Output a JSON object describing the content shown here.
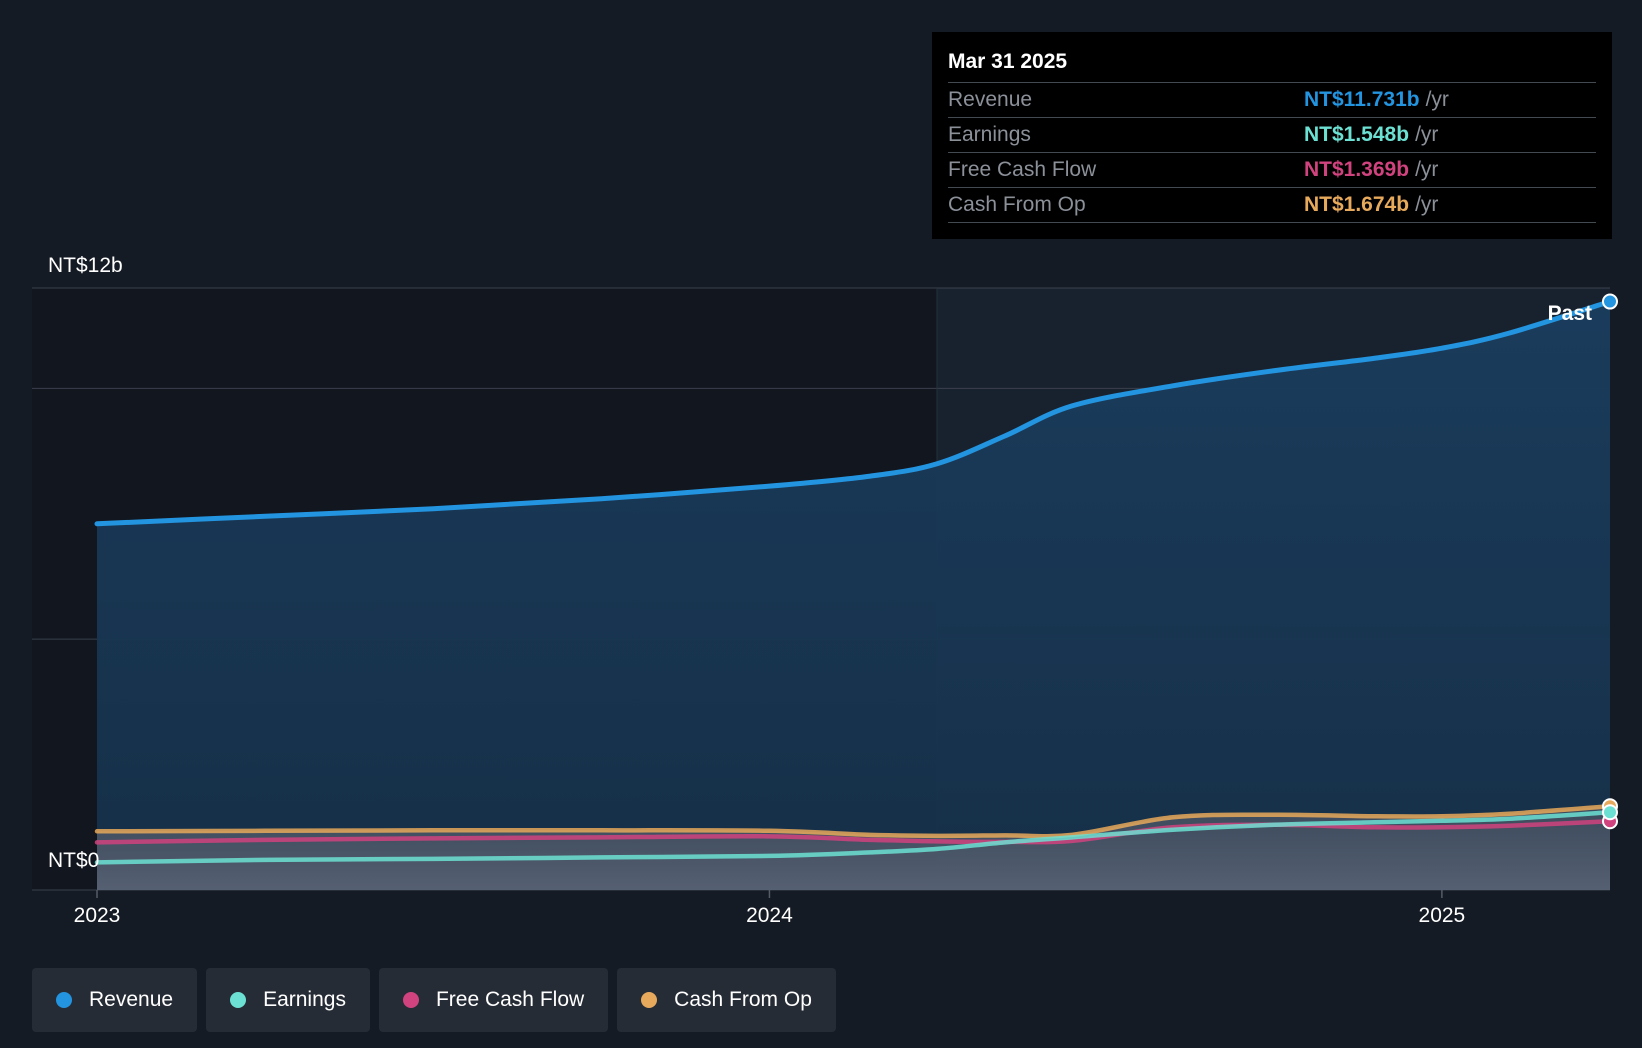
{
  "chart_data": {
    "type": "line",
    "x_labels": [
      "2023",
      "2024",
      "2025"
    ],
    "y_labels": [
      "NT$12b",
      "NT$0"
    ],
    "ylim": [
      0,
      12
    ],
    "y_unit": "NT$ billions",
    "marker_label": "Past",
    "x": [
      2023.0,
      2023.25,
      2023.5,
      2023.75,
      2024.0,
      2024.15,
      2024.25,
      2024.35,
      2024.45,
      2024.6,
      2024.75,
      2024.9,
      2025.0,
      2025.1,
      2025.25
    ],
    "series": [
      {
        "name": "Revenue",
        "color": "#2394df",
        "values": [
          7.3,
          7.45,
          7.6,
          7.8,
          8.05,
          8.25,
          8.5,
          9.05,
          9.65,
          10.05,
          10.35,
          10.6,
          10.8,
          11.1,
          11.73
        ]
      },
      {
        "name": "Earnings",
        "color": "#6ce0d2",
        "values": [
          0.55,
          0.6,
          0.62,
          0.65,
          0.68,
          0.75,
          0.82,
          0.95,
          1.05,
          1.2,
          1.3,
          1.35,
          1.38,
          1.42,
          1.55
        ]
      },
      {
        "name": "Free Cash Flow",
        "color": "#d0437e",
        "values": [
          0.95,
          1.0,
          1.03,
          1.05,
          1.07,
          1.0,
          0.97,
          0.96,
          0.98,
          1.25,
          1.3,
          1.25,
          1.25,
          1.28,
          1.37
        ]
      },
      {
        "name": "Cash From Op",
        "color": "#e7a95b",
        "values": [
          1.17,
          1.18,
          1.19,
          1.19,
          1.18,
          1.1,
          1.08,
          1.09,
          1.1,
          1.45,
          1.5,
          1.47,
          1.47,
          1.52,
          1.67
        ]
      }
    ]
  },
  "tooltip": {
    "date": "Mar 31 2025",
    "rows": [
      {
        "label": "Revenue",
        "value": "NT$11.731b",
        "unit": "/yr",
        "color": "#2394df"
      },
      {
        "label": "Earnings",
        "value": "NT$1.548b",
        "unit": "/yr",
        "color": "#6ce0d2"
      },
      {
        "label": "Free Cash Flow",
        "value": "NT$1.369b",
        "unit": "/yr",
        "color": "#d0437e"
      },
      {
        "label": "Cash From Op",
        "value": "NT$1.674b",
        "unit": "/yr",
        "color": "#e7a95b"
      }
    ]
  },
  "legend": [
    {
      "label": "Revenue",
      "color": "#2394df"
    },
    {
      "label": "Earnings",
      "color": "#6ce0d2"
    },
    {
      "label": "Free Cash Flow",
      "color": "#d0437e"
    },
    {
      "label": "Cash From Op",
      "color": "#e7a95b"
    }
  ]
}
